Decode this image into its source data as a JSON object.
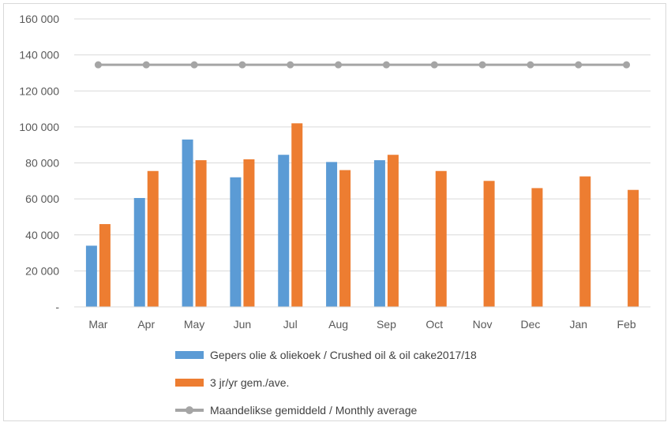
{
  "chart_data": {
    "type": "bar",
    "categories": [
      "Mar",
      "Apr",
      "May",
      "Jun",
      "Jul",
      "Aug",
      "Sep",
      "Oct",
      "Nov",
      "Dec",
      "Jan",
      "Feb"
    ],
    "series": [
      {
        "name": "Gepers olie & oliekoek / Crushed oil & oil cake2017/18",
        "type": "bar",
        "color": "#5b9bd5",
        "values": [
          34000,
          60500,
          93000,
          72000,
          84500,
          80500,
          81500,
          null,
          null,
          null,
          null,
          null
        ]
      },
      {
        "name": "3 jr/yr gem./ave.",
        "type": "bar",
        "color": "#ed7d31",
        "values": [
          46000,
          75500,
          81500,
          82000,
          102000,
          76000,
          84500,
          75500,
          70000,
          66000,
          72500,
          65000
        ]
      },
      {
        "name": "Maandelikse gemiddeld / Monthly average",
        "type": "line",
        "color": "#a5a5a5",
        "values": [
          134500,
          134500,
          134500,
          134500,
          134500,
          134500,
          134500,
          134500,
          134500,
          134500,
          134500,
          134500
        ]
      }
    ],
    "ylim": [
      0,
      160000
    ],
    "yticks": [
      0,
      20000,
      40000,
      60000,
      80000,
      100000,
      120000,
      140000,
      160000
    ],
    "ytick_labels": [
      "-",
      "20 000",
      "40 000",
      "60 000",
      "80 000",
      "100 000",
      "120 000",
      "140 000",
      "160 000"
    ],
    "grid": true,
    "legend_position": "bottom"
  }
}
